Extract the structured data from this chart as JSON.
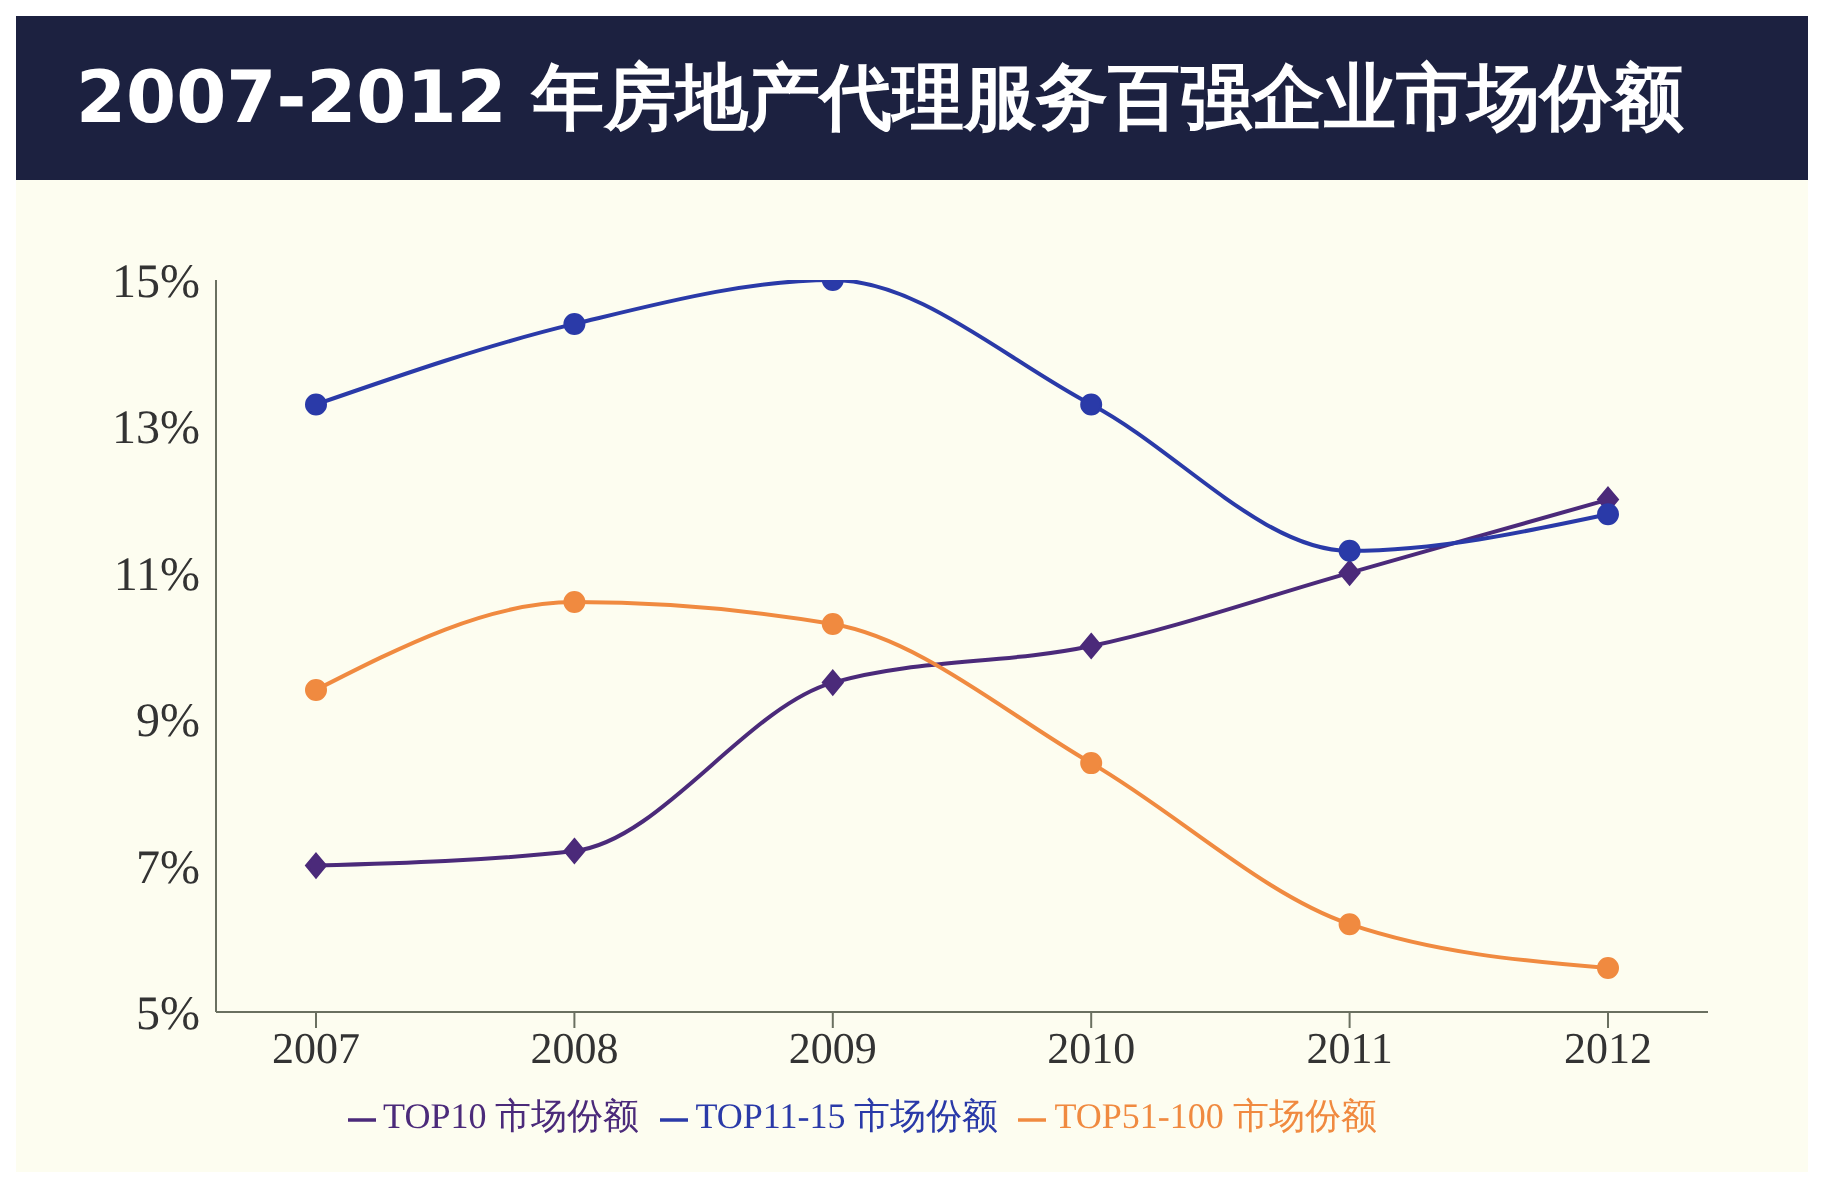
{
  "chart_data": {
    "type": "line",
    "title": "2007-2012 年房地产代理服务百强企业市场份额",
    "categories": [
      "2007",
      "2008",
      "2009",
      "2010",
      "2011",
      "2012"
    ],
    "series": [
      {
        "name": "TOP10 市场份额",
        "color": "#4b2a7a",
        "marker": "diamond",
        "values": [
          7.0,
          7.2,
          9.5,
          10.0,
          11.0,
          12.0
        ]
      },
      {
        "name": "TOP11-15 市场份额",
        "color": "#2a3aa8",
        "marker": "circle",
        "values": [
          13.3,
          14.4,
          15.0,
          13.3,
          11.3,
          11.8
        ]
      },
      {
        "name": "TOP51-100 市场份额",
        "color": "#f08a40",
        "marker": "circle",
        "values": [
          9.4,
          10.6,
          10.3,
          8.4,
          6.2,
          5.6
        ]
      }
    ],
    "ylim": [
      5,
      15
    ],
    "yticks": [
      {
        "value": 5,
        "label": "5%"
      },
      {
        "value": 7,
        "label": "7%"
      },
      {
        "value": 9,
        "label": "9%"
      },
      {
        "value": 11,
        "label": "11%"
      },
      {
        "value": 13,
        "label": "13%"
      },
      {
        "value": 15,
        "label": "15%"
      }
    ],
    "grid": false,
    "legend": "bottom",
    "line_style": "solid"
  }
}
